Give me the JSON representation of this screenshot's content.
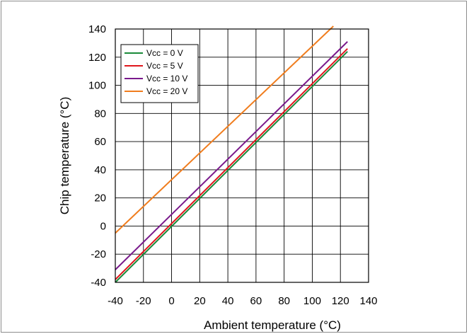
{
  "chart_data": {
    "type": "line",
    "title": "",
    "xlabel": "Ambient temperature (°C)",
    "ylabel": "Chip temperature (°C)",
    "xlim": [
      -40,
      140
    ],
    "ylim": [
      -40,
      140
    ],
    "xticks": [
      -40,
      -20,
      0,
      20,
      40,
      60,
      80,
      100,
      120,
      140
    ],
    "yticks": [
      -40,
      -20,
      0,
      20,
      40,
      60,
      80,
      100,
      120,
      140
    ],
    "grid": true,
    "legend_position": "top-left",
    "series": [
      {
        "name": "Vcc = 0 V",
        "color": "#1a8a3a",
        "x": [
          -40,
          125
        ],
        "y": [
          -40,
          124
        ]
      },
      {
        "name": "Vcc = 5 V",
        "color": "#e0161c",
        "x": [
          -40,
          125
        ],
        "y": [
          -38,
          126
        ]
      },
      {
        "name": "Vcc = 10 V",
        "color": "#7a1a8c",
        "x": [
          -40,
          125
        ],
        "y": [
          -31,
          131
        ]
      },
      {
        "name": "Vcc = 20 V",
        "color": "#f07d1e",
        "x": [
          -40,
          115
        ],
        "y": [
          -5,
          142
        ]
      }
    ]
  }
}
